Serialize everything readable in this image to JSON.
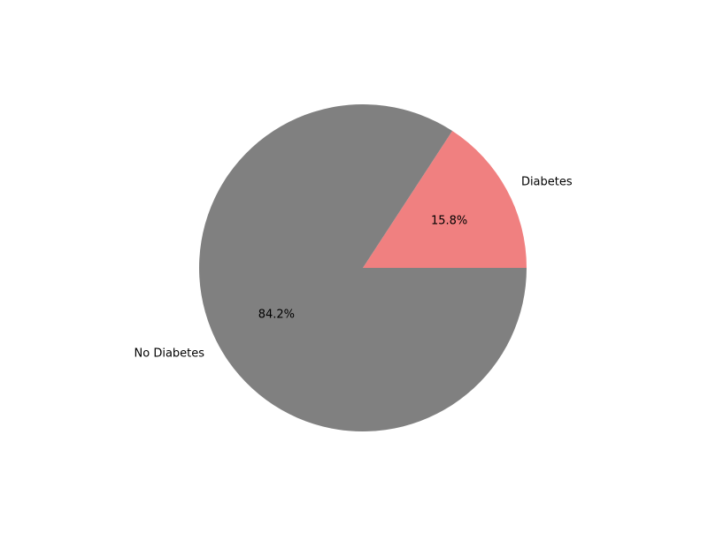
{
  "chart_data": {
    "type": "pie",
    "categories": [
      "Diabetes",
      "No Diabetes"
    ],
    "values": [
      15.8,
      84.2
    ],
    "value_labels": [
      "15.8%",
      "84.2%"
    ],
    "colors": [
      "#f08080",
      "#808080"
    ],
    "start_angle_deg": 0,
    "direction": "counterclockwise",
    "title": "",
    "legend": "none"
  }
}
